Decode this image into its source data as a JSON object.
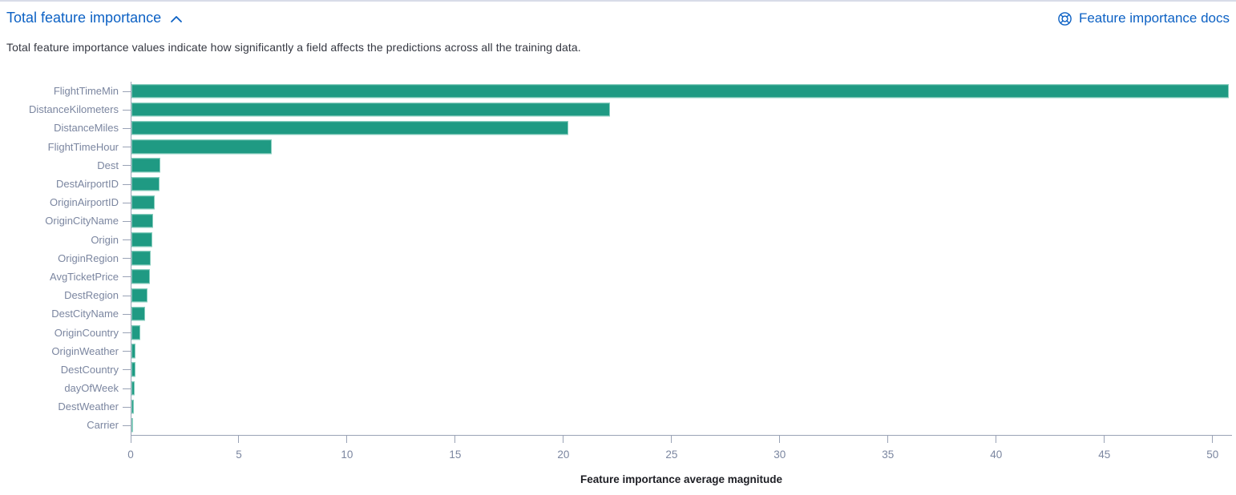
{
  "header": {
    "title": "Total feature importance",
    "docs_link_label": "Feature importance docs"
  },
  "description": "Total feature importance values indicate how significantly a field affects the predictions across all the training data.",
  "colors": {
    "bar": "#1f9a83",
    "link": "#0c61c4",
    "axis": "#9aa3b6",
    "tick_label": "#7b86a0",
    "body_text": "#343741"
  },
  "chart_data": {
    "type": "bar",
    "orientation": "horizontal",
    "title": "Total feature importance",
    "xlabel": "Feature importance average magnitude",
    "ylabel": "",
    "categories": [
      "FlightTimeMin",
      "DistanceKilometers",
      "DistanceMiles",
      "FlightTimeHour",
      "Dest",
      "DestAirportID",
      "OriginAirportID",
      "OriginCityName",
      "Origin",
      "OriginRegion",
      "AvgTicketPrice",
      "DestRegion",
      "DestCityName",
      "OriginCountry",
      "OriginWeather",
      "DestCountry",
      "dayOfWeek",
      "DestWeather",
      "Carrier"
    ],
    "values": [
      50.7,
      22.1,
      20.2,
      6.5,
      1.33,
      1.3,
      1.08,
      1.0,
      0.98,
      0.9,
      0.84,
      0.74,
      0.63,
      0.41,
      0.2,
      0.19,
      0.15,
      0.11,
      0.05
    ],
    "xticks": [
      0,
      5,
      10,
      15,
      20,
      25,
      30,
      35,
      40,
      45,
      50
    ],
    "xlim": [
      0,
      50.9
    ],
    "grid": false,
    "legend": false,
    "bar_color": "#1f9a83"
  }
}
